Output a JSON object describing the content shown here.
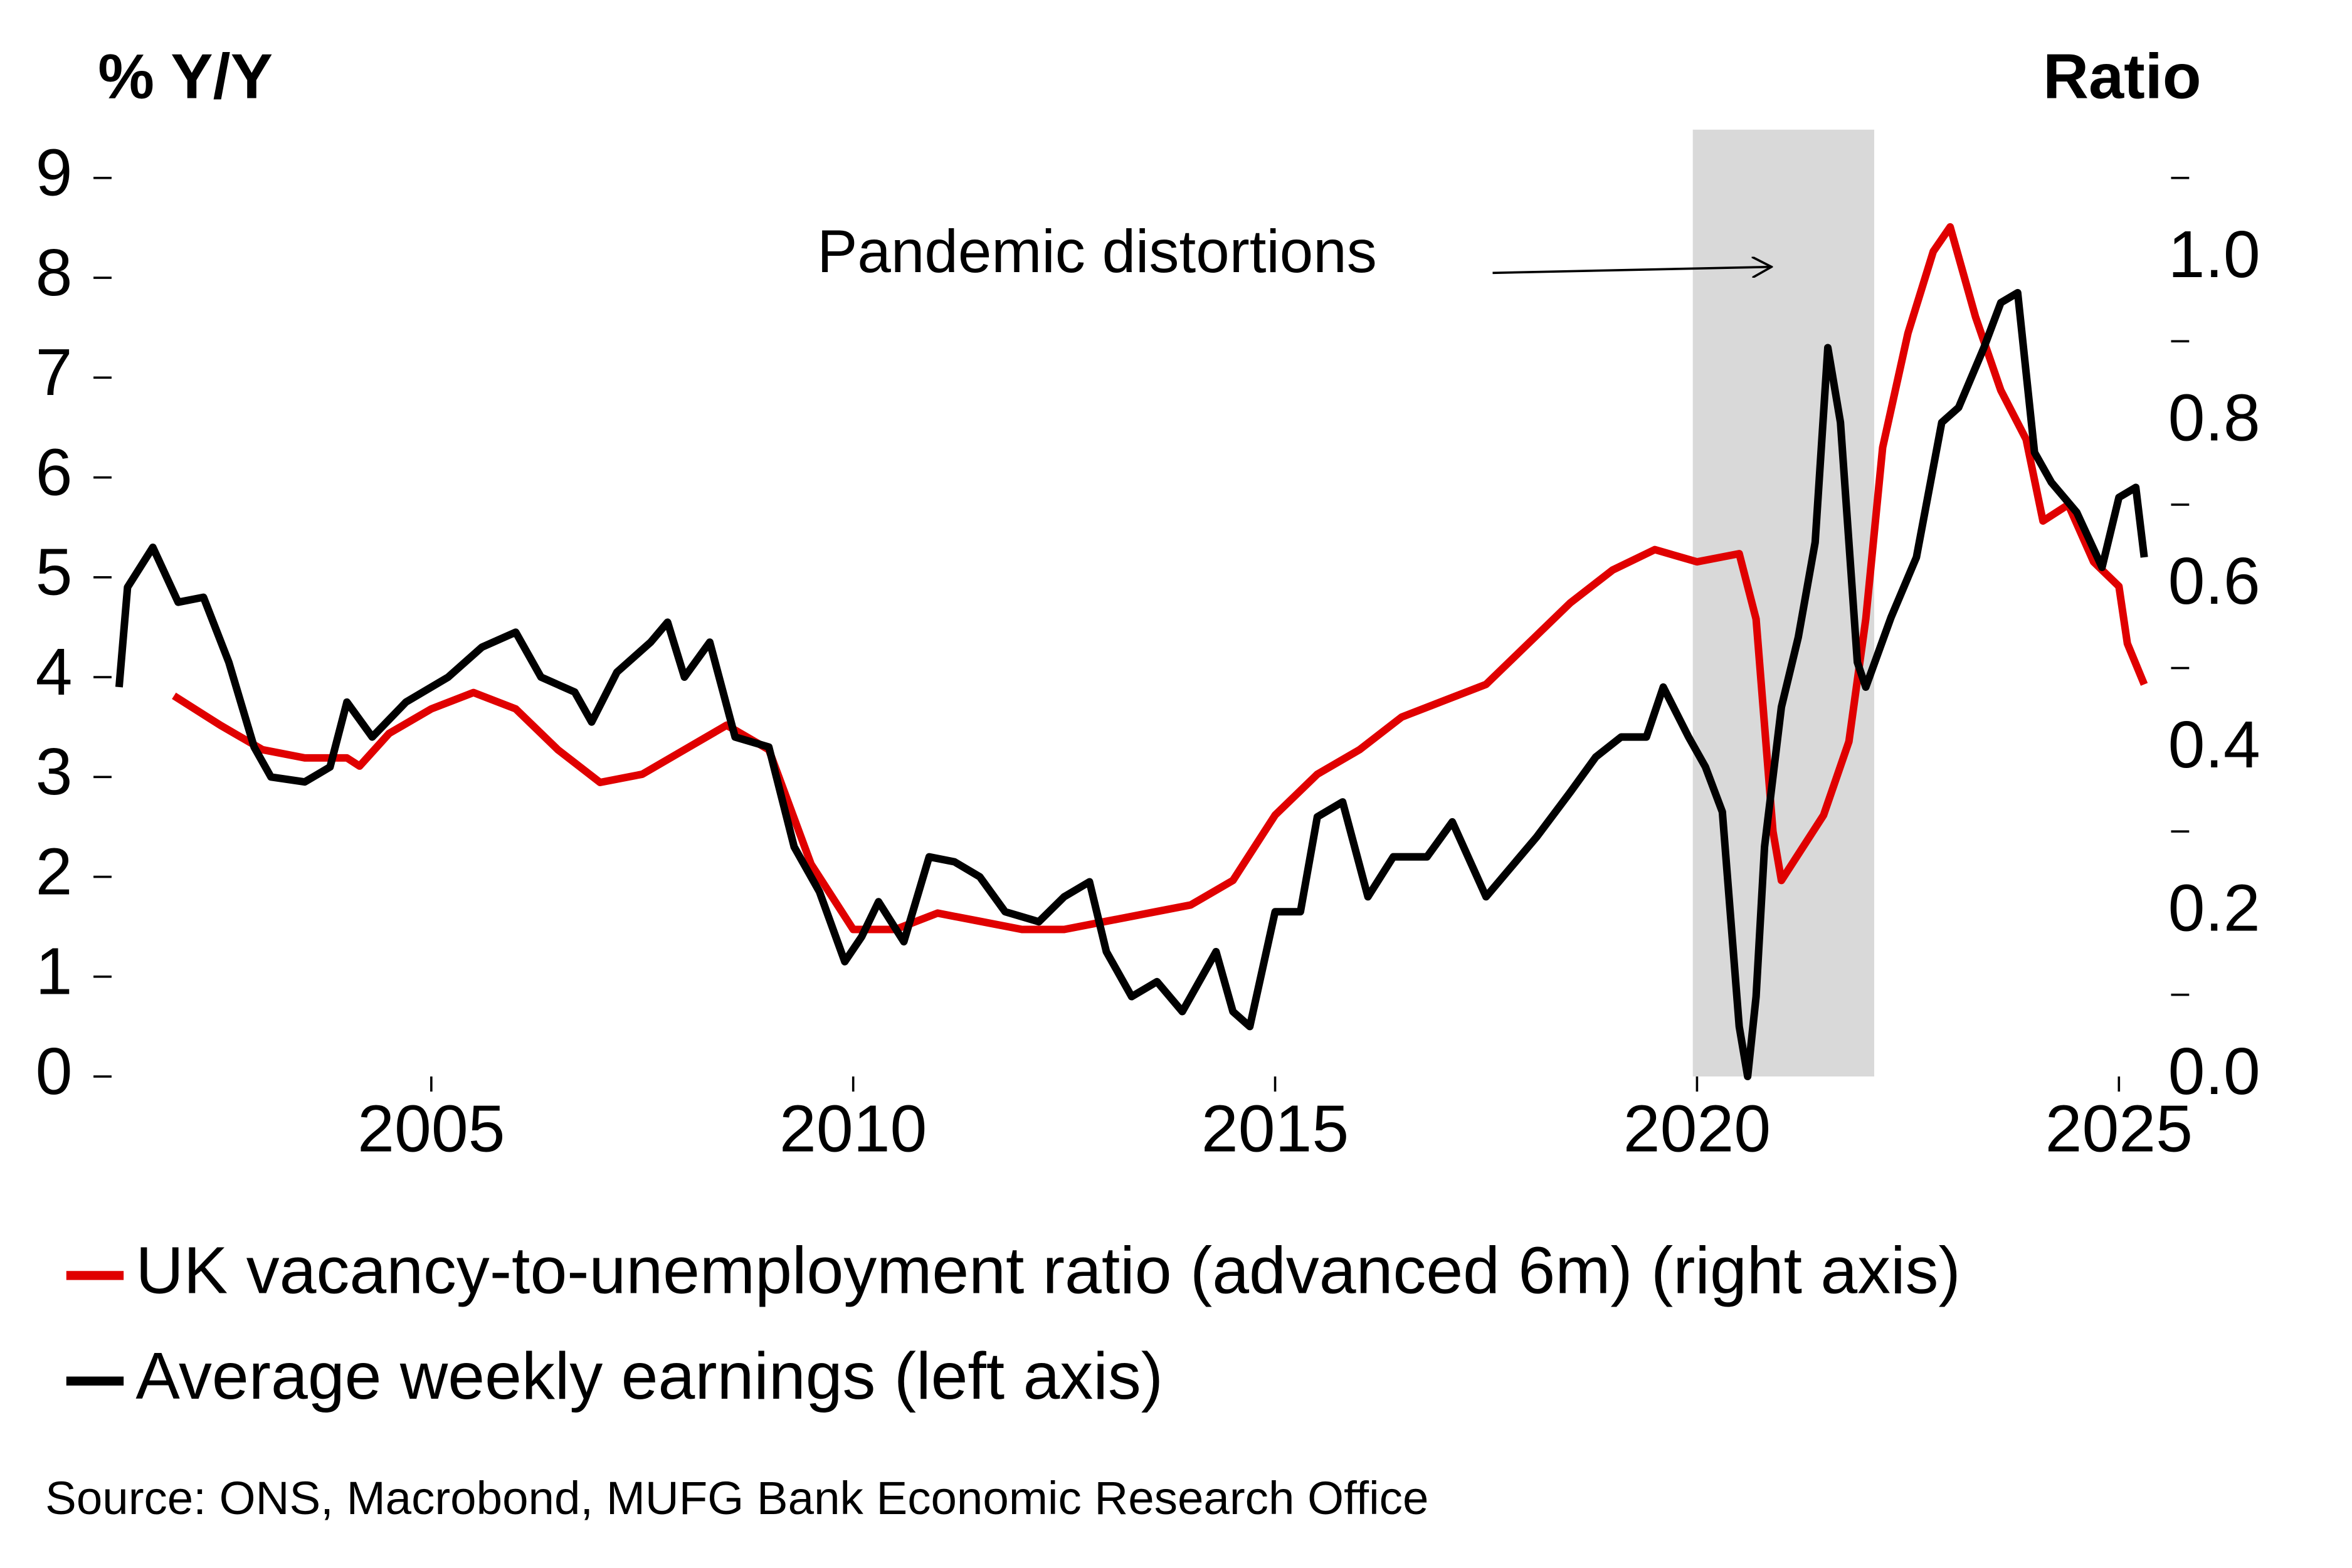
{
  "chart_data": {
    "type": "line",
    "ylabel": "% Y/Y",
    "y2label": "Ratio",
    "xlim": [
      2001.05,
      2025.35
    ],
    "xticks": [
      2005,
      2010,
      2015,
      2020,
      2025
    ],
    "ylim": [
      0,
      9
    ],
    "yticks": [
      0,
      1,
      2,
      3,
      4,
      5,
      6,
      7,
      8,
      9
    ],
    "y2lim": [
      0,
      1.1
    ],
    "y2ticks": [
      {
        "value": 0,
        "label": "0.0"
      },
      {
        "value": 0.2,
        "label": "0.2"
      },
      {
        "value": 0.4,
        "label": "0.4"
      },
      {
        "value": 0.6,
        "label": "0.6"
      },
      {
        "value": 0.8,
        "label": "0.8"
      },
      {
        "value": 1,
        "label": "1.0"
      }
    ],
    "y2minorticks": [
      0.1,
      0.3,
      0.5,
      0.7,
      0.9,
      1.1
    ],
    "grid": false,
    "shaded_region": {
      "xlim": [
        2019.95,
        2022.1
      ],
      "color": "#d9d9d9"
    },
    "annotation": {
      "text": "Pandemic distortions"
    },
    "legend": "bottom",
    "source": "Source: ONS, Macrobond, MUFG Bank Economic Research Office",
    "series": [
      {
        "name": "UK vacancy-to-unemployment ratio (advanced 6m) (right axis)",
        "color": "#e00000",
        "axis": "y2",
        "x": [
          2001.95,
          2002.5,
          2003,
          2003.5,
          2004,
          2004.15,
          2004.5,
          2005,
          2005.5,
          2006,
          2006.5,
          2007,
          2007.5,
          2008,
          2008.5,
          2009,
          2009.5,
          2010,
          2010.5,
          2011,
          2011.5,
          2012,
          2012.5,
          2013,
          2013.5,
          2014,
          2014.5,
          2015,
          2015.5,
          2016,
          2016.5,
          2017,
          2017.5,
          2018,
          2018.5,
          2019,
          2019.5,
          2020,
          2020.5,
          2020.7,
          2020.9,
          2021,
          2021.5,
          2021.8,
          2022,
          2022.2,
          2022.5,
          2022.8,
          2023,
          2023.3,
          2023.6,
          2023.9,
          2024.1,
          2024.4,
          2024.7,
          2025,
          2025.1,
          2025.3
        ],
        "values": [
          0.466,
          0.43,
          0.4,
          0.39,
          0.39,
          0.38,
          0.42,
          0.45,
          0.47,
          0.45,
          0.4,
          0.36,
          0.37,
          0.4,
          0.43,
          0.4,
          0.26,
          0.18,
          0.18,
          0.2,
          0.19,
          0.18,
          0.18,
          0.19,
          0.2,
          0.21,
          0.24,
          0.32,
          0.37,
          0.4,
          0.44,
          0.46,
          0.48,
          0.53,
          0.58,
          0.62,
          0.645,
          0.63,
          0.64,
          0.56,
          0.3,
          0.24,
          0.32,
          0.41,
          0.56,
          0.77,
          0.91,
          1.01,
          1.04,
          0.93,
          0.84,
          0.78,
          0.68,
          0.7,
          0.63,
          0.6,
          0.53,
          0.48
        ]
      },
      {
        "name": "Average weekly earnings (left axis)",
        "color": "#000000",
        "axis": "y",
        "x": [
          2001.3,
          2001.4,
          2001.7,
          2002,
          2002.3,
          2002.6,
          2002.9,
          2003.1,
          2003.5,
          2003.8,
          2004,
          2004.3,
          2004.7,
          2005.2,
          2005.6,
          2006,
          2006.3,
          2006.7,
          2006.9,
          2007.2,
          2007.6,
          2007.8,
          2008,
          2008.3,
          2008.6,
          2009,
          2009.3,
          2009.6,
          2009.9,
          2010.1,
          2010.3,
          2010.6,
          2010.9,
          2011.2,
          2011.5,
          2011.8,
          2012.2,
          2012.5,
          2012.8,
          2013,
          2013.3,
          2013.6,
          2013.9,
          2014.3,
          2014.5,
          2014.7,
          2015,
          2015.3,
          2015.5,
          2015.8,
          2016.1,
          2016.4,
          2016.8,
          2017.1,
          2017.5,
          2017.8,
          2018.1,
          2018.5,
          2018.8,
          2019.1,
          2019.4,
          2019.6,
          2019.9,
          2020.1,
          2020.3,
          2020.5,
          2020.6,
          2020.7,
          2020.8,
          2021,
          2021.2,
          2021.4,
          2021.55,
          2021.7,
          2021.9,
          2022,
          2022.3,
          2022.6,
          2022.9,
          2023.1,
          2023.4,
          2023.6,
          2023.8,
          2024,
          2024.2,
          2024.5,
          2024.8,
          2025,
          2025.2,
          2025.3
        ],
        "values": [
          3.9,
          4.9,
          5.3,
          4.75,
          4.8,
          4.15,
          3.3,
          3.0,
          2.95,
          3.1,
          3.75,
          3.4,
          3.75,
          4.0,
          4.3,
          4.45,
          4.0,
          3.85,
          3.55,
          4.05,
          4.35,
          4.55,
          4.0,
          4.35,
          3.4,
          3.3,
          2.3,
          1.85,
          1.15,
          1.4,
          1.75,
          1.35,
          2.2,
          2.15,
          2.0,
          1.65,
          1.55,
          1.8,
          1.95,
          1.25,
          0.8,
          0.95,
          0.65,
          1.25,
          0.65,
          0.5,
          1.65,
          1.65,
          2.6,
          2.75,
          1.8,
          2.2,
          2.2,
          2.55,
          1.8,
          2.1,
          2.4,
          2.85,
          3.2,
          3.4,
          3.4,
          3.9,
          3.4,
          3.1,
          2.65,
          0.5,
          0.0,
          0.8,
          2.3,
          3.7,
          4.4,
          5.35,
          7.3,
          6.55,
          4.15,
          3.9,
          4.6,
          5.2,
          6.55,
          6.7,
          7.3,
          7.75,
          7.85,
          6.25,
          5.95,
          5.65,
          5.1,
          5.8,
          5.9,
          5.2
        ]
      }
    ]
  }
}
